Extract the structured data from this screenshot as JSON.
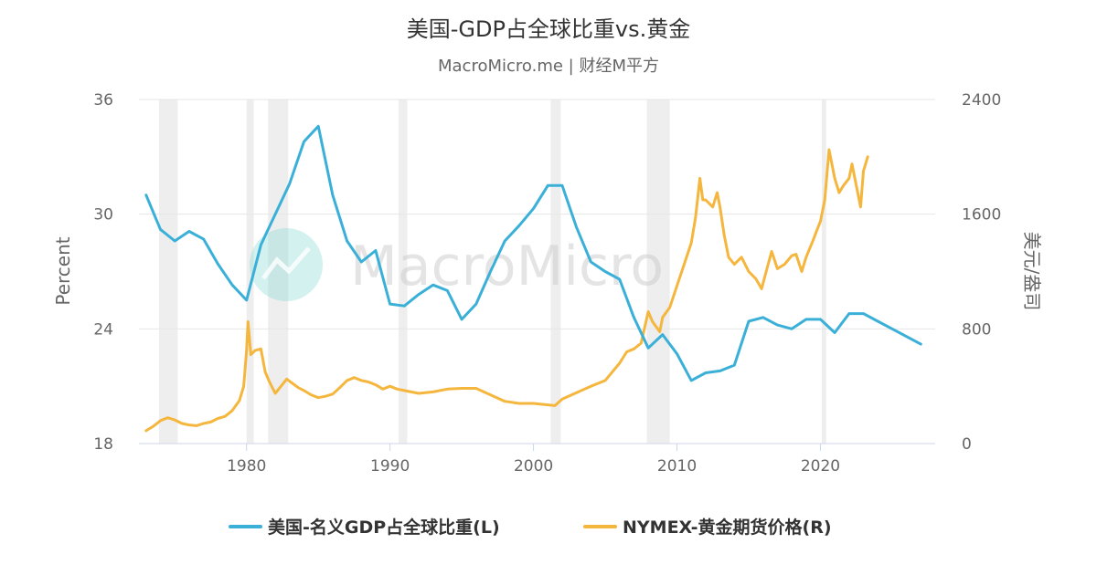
{
  "chart_data": {
    "type": "line",
    "title": "美国-GDP占全球比重vs.黄金",
    "subtitle": "MacroMicro.me | 财经M平方",
    "watermark": "MacroMicro",
    "xlabel": "",
    "ylabel_left": "Percent",
    "ylabel_right": "美元/盎司",
    "xlim": [
      1972.5,
      2028
    ],
    "ylim_left": [
      18,
      36
    ],
    "ylim_right": [
      0,
      2400
    ],
    "x_ticks": [
      1980,
      1990,
      2000,
      2010,
      2020
    ],
    "y_ticks_left": [
      18,
      24,
      30,
      36
    ],
    "y_ticks_right": [
      0,
      800,
      1600,
      2400
    ],
    "grid": true,
    "legend_position": "bottom",
    "recession_bands": [
      [
        1973.9,
        1975.2
      ],
      [
        1980.0,
        1980.5
      ],
      [
        1981.5,
        1982.9
      ],
      [
        1990.6,
        1991.2
      ],
      [
        2001.2,
        2001.9
      ],
      [
        2007.9,
        2009.5
      ],
      [
        2020.1,
        2020.4
      ]
    ],
    "series": [
      {
        "name": "美国-名义GDP占全球比重(L)",
        "axis": "left",
        "color": "#3ab0d8",
        "x": [
          1973,
          1974,
          1975,
          1976,
          1977,
          1978,
          1979,
          1980,
          1981,
          1982,
          1983,
          1984,
          1985,
          1986,
          1987,
          1988,
          1989,
          1990,
          1991,
          1992,
          1993,
          1994,
          1995,
          1996,
          1997,
          1998,
          1999,
          2000,
          2001,
          2002,
          2003,
          2004,
          2005,
          2006,
          2007,
          2008,
          2009,
          2010,
          2011,
          2012,
          2013,
          2014,
          2015,
          2016,
          2017,
          2018,
          2019,
          2020,
          2021,
          2022,
          2023,
          2024,
          2025,
          2026,
          2027
        ],
        "values": [
          31.0,
          29.2,
          28.6,
          29.1,
          28.7,
          27.4,
          26.3,
          25.5,
          28.4,
          30.0,
          31.6,
          33.8,
          34.6,
          31.0,
          28.6,
          27.5,
          28.1,
          25.3,
          25.2,
          25.8,
          26.3,
          26.0,
          24.5,
          25.3,
          27.0,
          28.6,
          29.4,
          30.3,
          31.5,
          31.5,
          29.3,
          27.5,
          27.0,
          26.6,
          24.6,
          23.0,
          23.7,
          22.7,
          21.3,
          21.7,
          21.8,
          22.1,
          24.4,
          24.6,
          24.2,
          24.0,
          24.5,
          24.5,
          23.8,
          24.8,
          24.8,
          24.4,
          24.0,
          23.6,
          23.2
        ]
      },
      {
        "name": "NYMEX-黄金期货价格(R)",
        "axis": "right",
        "color": "#f5b63e",
        "x": [
          1973.0,
          1973.5,
          1974.0,
          1974.5,
          1975.0,
          1975.5,
          1976.0,
          1976.5,
          1977.0,
          1977.5,
          1978.0,
          1978.5,
          1979.0,
          1979.5,
          1979.8,
          1980.0,
          1980.1,
          1980.3,
          1980.6,
          1981.0,
          1981.3,
          1981.6,
          1982.0,
          1982.4,
          1982.8,
          1983.2,
          1983.6,
          1984.0,
          1984.5,
          1985.0,
          1985.5,
          1986.0,
          1986.5,
          1987.0,
          1987.5,
          1988.0,
          1988.5,
          1989.0,
          1989.5,
          1990.0,
          1990.5,
          1991.0,
          1992.0,
          1993.0,
          1994.0,
          1995.0,
          1996.0,
          1997.0,
          1998.0,
          1999.0,
          2000.0,
          2001.0,
          2001.5,
          2002.0,
          2003.0,
          2004.0,
          2005.0,
          2006.0,
          2006.5,
          2007.0,
          2007.5,
          2008.0,
          2008.3,
          2008.8,
          2009.0,
          2009.5,
          2010.0,
          2010.5,
          2011.0,
          2011.3,
          2011.6,
          2011.8,
          2012.0,
          2012.5,
          2012.8,
          2013.0,
          2013.3,
          2013.6,
          2014.0,
          2014.5,
          2015.0,
          2015.5,
          2015.9,
          2016.3,
          2016.6,
          2017.0,
          2017.5,
          2018.0,
          2018.3,
          2018.7,
          2019.0,
          2019.5,
          2019.8,
          2020.0,
          2020.3,
          2020.6,
          2020.8,
          2021.0,
          2021.3,
          2021.6,
          2022.0,
          2022.2,
          2022.5,
          2022.8,
          2023.0,
          2023.3
        ],
        "values": [
          90,
          120,
          160,
          180,
          165,
          140,
          130,
          125,
          140,
          150,
          175,
          190,
          230,
          300,
          400,
          650,
          850,
          620,
          650,
          660,
          500,
          430,
          350,
          400,
          450,
          420,
          390,
          370,
          340,
          320,
          330,
          345,
          390,
          440,
          460,
          440,
          430,
          410,
          380,
          400,
          380,
          370,
          350,
          360,
          380,
          385,
          385,
          340,
          295,
          280,
          280,
          270,
          265,
          310,
          355,
          400,
          440,
          560,
          640,
          660,
          700,
          920,
          850,
          780,
          880,
          950,
          1100,
          1250,
          1400,
          1580,
          1850,
          1700,
          1700,
          1650,
          1750,
          1650,
          1450,
          1300,
          1250,
          1300,
          1200,
          1150,
          1080,
          1230,
          1340,
          1220,
          1250,
          1310,
          1320,
          1200,
          1300,
          1420,
          1500,
          1550,
          1700,
          2050,
          1950,
          1850,
          1750,
          1800,
          1850,
          1950,
          1800,
          1650,
          1900,
          2000
        ]
      }
    ]
  }
}
